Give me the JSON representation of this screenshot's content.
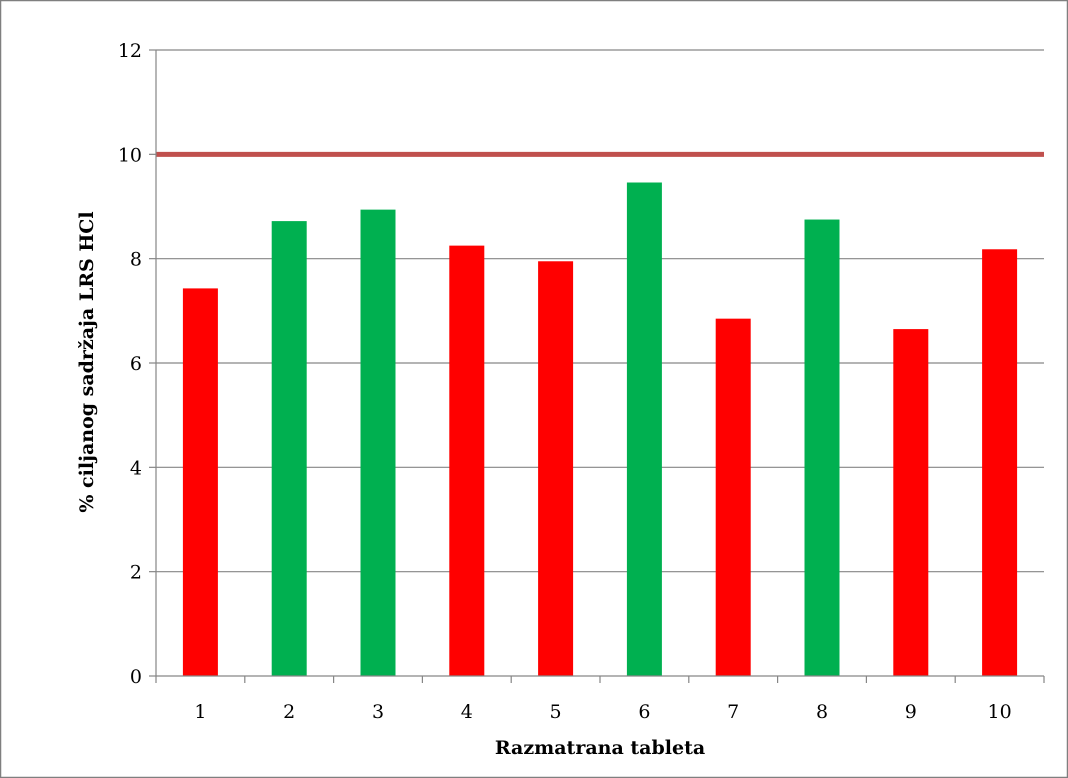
{
  "chart_data": {
    "type": "bar",
    "title": "",
    "xlabel": "Razmatrana tableta",
    "ylabel": "% ciljanog sadržaja LRS HCl",
    "categories": [
      "1",
      "2",
      "3",
      "4",
      "5",
      "6",
      "7",
      "8",
      "9",
      "10"
    ],
    "values": [
      7.43,
      8.72,
      8.94,
      8.25,
      7.95,
      9.46,
      6.85,
      8.75,
      6.65,
      8.18
    ],
    "bar_colors": [
      "#ff0000",
      "#00b050",
      "#00b050",
      "#ff0000",
      "#ff0000",
      "#00b050",
      "#ff0000",
      "#00b050",
      "#ff0000",
      "#ff0000"
    ],
    "ylim": [
      0,
      12
    ],
    "yticks": [
      "0",
      "2",
      "4",
      "6",
      "8",
      "10",
      "12"
    ],
    "reference_line": {
      "y": 10,
      "color": "#c0504d"
    },
    "grid": true,
    "legend": "none"
  }
}
